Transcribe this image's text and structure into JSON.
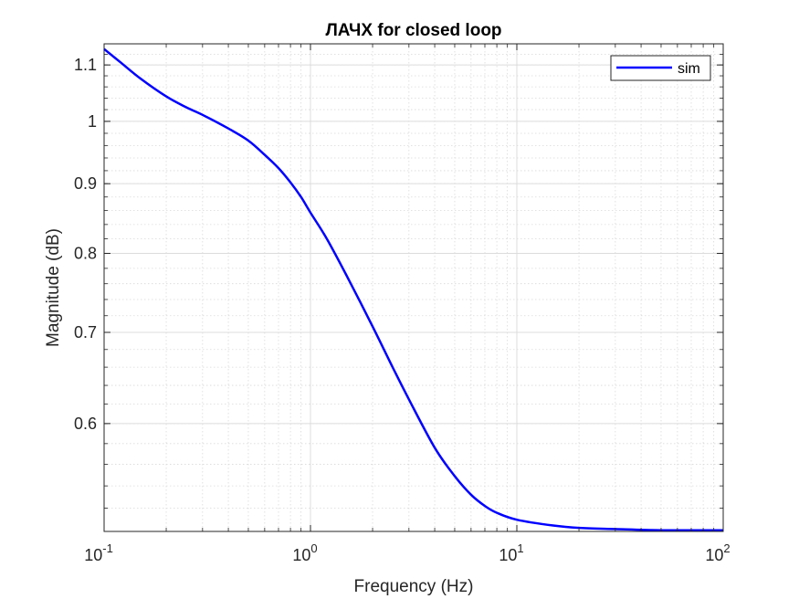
{
  "chart_data": {
    "type": "line",
    "title": "ЛАЧХ for closed loop",
    "xlabel": "Frequency (Hz)",
    "ylabel": "Magnitude (dB)",
    "xscale": "log",
    "yscale": "log",
    "xlim": [
      0.1,
      100
    ],
    "ylim": [
      0.5,
      1.14
    ],
    "grid": "on (major and minor)",
    "legend_position": "top-right",
    "x_tick_labels": [
      {
        "base": "10",
        "exp": "-1",
        "value": 0.1
      },
      {
        "base": "10",
        "exp": "0",
        "value": 1
      },
      {
        "base": "10",
        "exp": "1",
        "value": 10
      },
      {
        "base": "10",
        "exp": "2",
        "value": 100
      }
    ],
    "y_tick_labels": [
      {
        "label": "0.6",
        "value": 0.6
      },
      {
        "label": "0.7",
        "value": 0.7
      },
      {
        "label": "0.8",
        "value": 0.8
      },
      {
        "label": "0.9",
        "value": 0.9
      },
      {
        "label": "1",
        "value": 1.0
      },
      {
        "label": "1.1",
        "value": 1.1
      }
    ],
    "series": [
      {
        "name": "sim",
        "color": "#0000ff",
        "x": [
          0.1,
          0.12,
          0.15,
          0.2,
          0.25,
          0.3,
          0.4,
          0.5,
          0.6,
          0.7,
          0.8,
          0.9,
          1.0,
          1.2,
          1.5,
          2.0,
          2.5,
          3.0,
          4.0,
          5.0,
          6.0,
          7.0,
          8.0,
          10.0,
          15.0,
          20.0,
          30.0,
          50.0,
          100.0
        ],
        "y": [
          1.13,
          1.105,
          1.075,
          1.043,
          1.024,
          1.011,
          0.988,
          0.968,
          0.945,
          0.924,
          0.902,
          0.88,
          0.857,
          0.82,
          0.77,
          0.707,
          0.66,
          0.625,
          0.576,
          0.549,
          0.532,
          0.522,
          0.516,
          0.51,
          0.505,
          0.503,
          0.502,
          0.501,
          0.501
        ]
      }
    ]
  }
}
